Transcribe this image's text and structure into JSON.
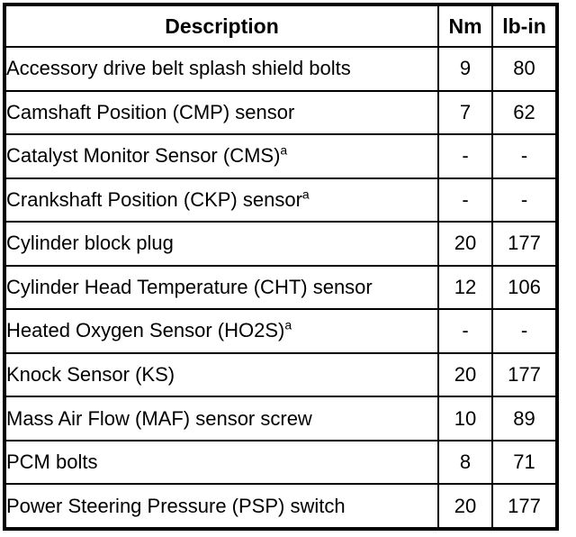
{
  "table": {
    "columns": [
      {
        "label": "Description"
      },
      {
        "label": "Nm"
      },
      {
        "label": "lb-in"
      }
    ],
    "rows": [
      {
        "description": "Accessory drive belt splash shield bolts",
        "footnote": "",
        "nm": "9",
        "lbin": "80"
      },
      {
        "description": "Camshaft Position (CMP) sensor",
        "footnote": "",
        "nm": "7",
        "lbin": "62"
      },
      {
        "description": "Catalyst Monitor Sensor (CMS)",
        "footnote": "a",
        "nm": "-",
        "lbin": "-"
      },
      {
        "description": "Crankshaft Position (CKP) sensor",
        "footnote": "a",
        "nm": "-",
        "lbin": "-"
      },
      {
        "description": "Cylinder block plug",
        "footnote": "",
        "nm": "20",
        "lbin": "177"
      },
      {
        "description": "Cylinder Head Temperature (CHT) sensor",
        "footnote": "",
        "nm": "12",
        "lbin": "106"
      },
      {
        "description": "Heated Oxygen Sensor (HO2S)",
        "footnote": "a",
        "nm": "-",
        "lbin": "-"
      },
      {
        "description": "Knock Sensor (KS)",
        "footnote": "",
        "nm": "20",
        "lbin": "177"
      },
      {
        "description": "Mass Air Flow (MAF) sensor screw",
        "footnote": "",
        "nm": "10",
        "lbin": "89"
      },
      {
        "description": "PCM bolts",
        "footnote": "",
        "nm": "8",
        "lbin": "71"
      },
      {
        "description": "Power Steering Pressure (PSP) switch",
        "footnote": "",
        "nm": "20",
        "lbin": "177"
      }
    ],
    "colors": {
      "border": "#000000",
      "text": "#000000",
      "background": "#ffffff"
    }
  }
}
